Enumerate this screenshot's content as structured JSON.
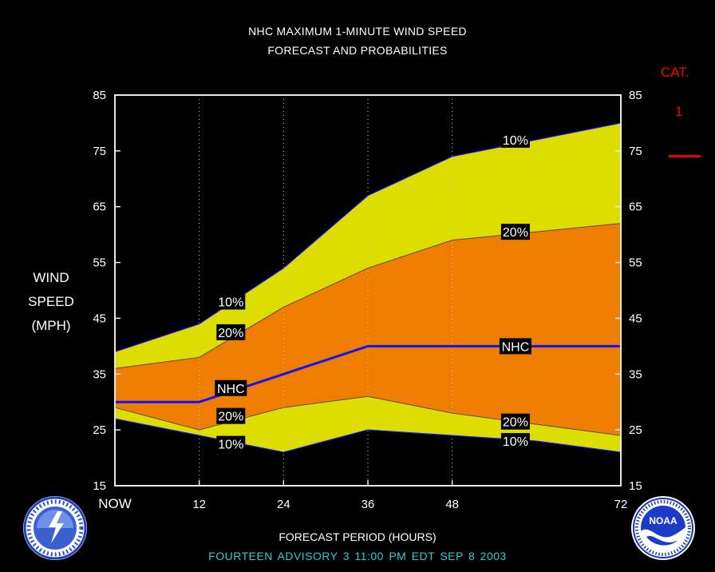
{
  "chart_data": {
    "type": "area",
    "title": "NHC MAXIMUM 1-MINUTE WIND SPEED",
    "subtitle": "FORECAST AND PROBABILITIES",
    "ylabel_lines": [
      "WIND",
      "SPEED",
      "(MPH)"
    ],
    "xlabel": "FORECAST PERIOD (HOURS)",
    "x_ticks": [
      {
        "x": 0,
        "label": "NOW"
      },
      {
        "x": 12,
        "label": "12"
      },
      {
        "x": 24,
        "label": "24"
      },
      {
        "x": 36,
        "label": "36"
      },
      {
        "x": 48,
        "label": "48"
      },
      {
        "x": 72,
        "label": "72"
      }
    ],
    "y_ticks": [
      15,
      25,
      35,
      45,
      55,
      65,
      75,
      85
    ],
    "xlim": [
      0,
      72
    ],
    "ylim": [
      15,
      85
    ],
    "x": [
      0,
      12,
      24,
      36,
      48,
      60,
      72
    ],
    "bands": {
      "upper_10": [
        39,
        44,
        54,
        67,
        74,
        77,
        80
      ],
      "upper_20": [
        36,
        38,
        47,
        54,
        59,
        60.5,
        62
      ],
      "nhc": [
        30,
        30,
        35,
        40,
        40,
        40,
        40
      ],
      "lower_20": [
        29,
        25,
        29,
        31,
        28,
        26,
        24
      ],
      "lower_10": [
        27,
        24,
        21,
        25,
        24,
        23,
        21
      ]
    },
    "band_labels": [
      {
        "text": "10%",
        "x": 16.5,
        "y": 48
      },
      {
        "text": "20%",
        "x": 16.5,
        "y": 42.5
      },
      {
        "text": "NHC",
        "x": 16.5,
        "y": 32.5
      },
      {
        "text": "20%",
        "x": 16.5,
        "y": 27.5
      },
      {
        "text": "10%",
        "x": 16.5,
        "y": 22.5
      },
      {
        "text": "10%",
        "x": 57,
        "y": 77
      },
      {
        "text": "20%",
        "x": 57,
        "y": 60.5
      },
      {
        "text": "NHC",
        "x": 57,
        "y": 40
      },
      {
        "text": "20%",
        "x": 57,
        "y": 26.5
      },
      {
        "text": "10%",
        "x": 57,
        "y": 23
      }
    ],
    "colors": {
      "outer_band": "#dddd00",
      "inner_band": "#ee7d00",
      "nhc_line": "#1111ff",
      "plot_border": "#e8e8e8",
      "grid": "#cccccc",
      "category": "#ff0000"
    },
    "grid": true
  },
  "category": {
    "label": "CAT.",
    "value": "1"
  },
  "advisory": "FOURTEEN ADVISORY 3 11:00 PM EDT SEP 8 2003",
  "logos": {
    "left": "NWS logo",
    "right": "NOAA logo"
  }
}
